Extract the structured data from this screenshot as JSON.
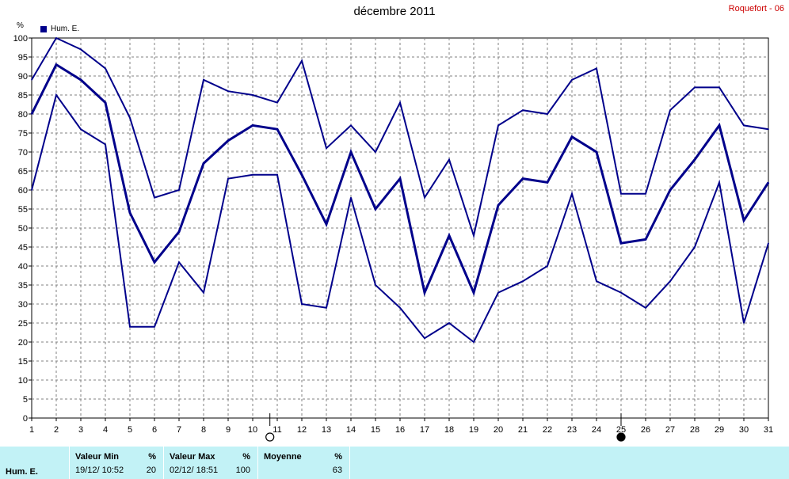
{
  "title": "décembre 2011",
  "station": "Roquefort - 06",
  "unit": "%",
  "legend_label": "Hum. E.",
  "colors": {
    "series": "#00008b",
    "grid": "#808080",
    "station": "#cc0000",
    "table_bg": "#c2f2f6"
  },
  "moon_markers": [
    {
      "day": 10.7,
      "phase": "full-moon"
    },
    {
      "day": 25,
      "phase": "new-moon"
    }
  ],
  "table": {
    "row_label": "Hum. E.",
    "min": {
      "header": "Valeur Min",
      "unit": "%",
      "date": "19/12/  10:52",
      "value": "20"
    },
    "max": {
      "header": "Valeur Max",
      "unit": "%",
      "date": "02/12/  18:51",
      "value": "100"
    },
    "avg": {
      "header": "Moyenne",
      "unit": "%",
      "value": "63"
    }
  },
  "chart_data": {
    "type": "line",
    "x": [
      1,
      2,
      3,
      4,
      5,
      6,
      7,
      8,
      9,
      10,
      11,
      12,
      13,
      14,
      15,
      16,
      17,
      18,
      19,
      20,
      21,
      22,
      23,
      24,
      25,
      26,
      27,
      28,
      29,
      30,
      31
    ],
    "xlim": [
      1,
      31
    ],
    "ylim": [
      0,
      100
    ],
    "yticks": [
      0,
      5,
      10,
      15,
      20,
      25,
      30,
      35,
      40,
      45,
      50,
      55,
      60,
      65,
      70,
      75,
      80,
      85,
      90,
      95,
      100
    ],
    "grid": true,
    "legend": "top-left",
    "series": [
      {
        "role": "max",
        "values": [
          89,
          100,
          97,
          92,
          79,
          58,
          60,
          89,
          86,
          85,
          83,
          94,
          71,
          77,
          70,
          83,
          58,
          68,
          48,
          77,
          81,
          80,
          89,
          92,
          59,
          59,
          81,
          87,
          87,
          77,
          76
        ]
      },
      {
        "role": "mean",
        "name": "Hum. E.",
        "values": [
          80,
          93,
          89,
          83,
          54,
          41,
          49,
          67,
          73,
          77,
          76,
          64,
          51,
          70,
          55,
          63,
          33,
          48,
          33,
          56,
          63,
          62,
          74,
          70,
          46,
          47,
          60,
          68,
          77,
          52,
          62
        ]
      },
      {
        "role": "min",
        "values": [
          60,
          85,
          76,
          72,
          24,
          24,
          41,
          33,
          63,
          64,
          64,
          30,
          29,
          58,
          35,
          29,
          21,
          25,
          20,
          33,
          36,
          40,
          59,
          36,
          33,
          29,
          36,
          45,
          62,
          25,
          46
        ]
      }
    ]
  }
}
